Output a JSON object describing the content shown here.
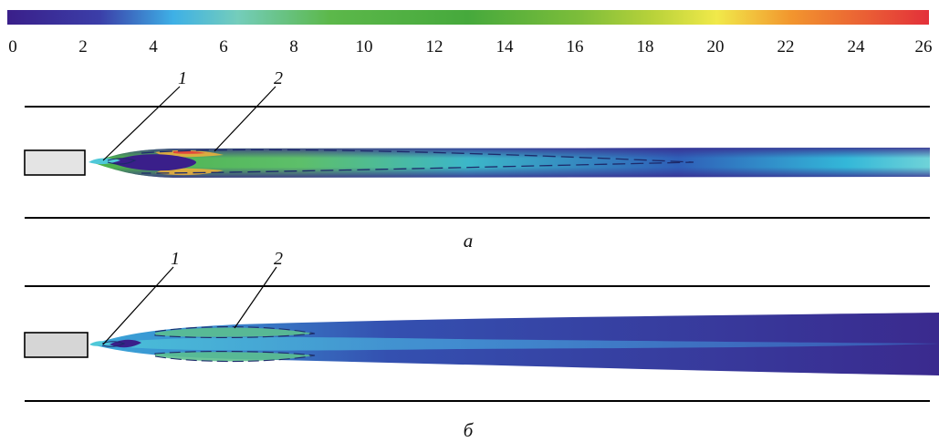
{
  "colorbar": {
    "ticks": [
      "0",
      "2",
      "4",
      "6",
      "8",
      "10",
      "12",
      "14",
      "16",
      "18",
      "20",
      "22",
      "24",
      "26"
    ],
    "colors": {
      "start": "#3a1f8a",
      "mid_blue": "#3eb0e6",
      "cyan": "#5fd0c8",
      "green": "#46a93c",
      "yellow_green": "#a6cc3a",
      "yellow": "#f1e94a",
      "orange": "#f2962e",
      "end": "#e3303a"
    }
  },
  "panels": [
    {
      "label": "а",
      "callouts": [
        "1",
        "2"
      ]
    },
    {
      "label": "б",
      "callouts": [
        "1",
        "2"
      ]
    }
  ]
}
